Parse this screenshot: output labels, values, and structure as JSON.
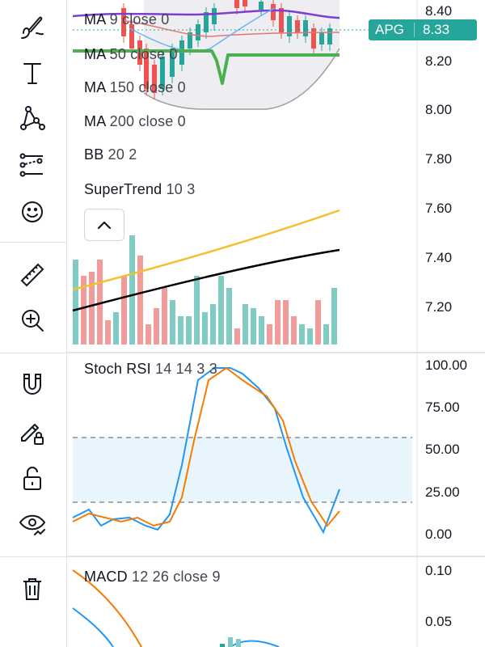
{
  "price_panel": {
    "legend": [
      {
        "name": "MA",
        "params": "9 close 0"
      },
      {
        "name": "MA",
        "params": "50 close 0"
      },
      {
        "name": "MA",
        "params": "150 close 0"
      },
      {
        "name": "MA",
        "params": "200 close 0"
      },
      {
        "name": "BB",
        "params": "20 2"
      },
      {
        "name": "SuperTrend",
        "params": "10 3"
      }
    ],
    "price_axis": [
      "8.40",
      "8.20",
      "8.00",
      "7.80",
      "7.60",
      "7.40",
      "7.20"
    ],
    "last_price": {
      "symbol": "APG",
      "value": "8.33",
      "color": "#26a69a"
    }
  },
  "stoch_panel": {
    "name": "Stoch RSI",
    "params": "14 14 3 3",
    "axis": [
      "100.00",
      "75.00",
      "50.00",
      "25.00",
      "0.00"
    ]
  },
  "macd_panel": {
    "name": "MACD",
    "params": "12 26 close 9",
    "axis": [
      "0.10",
      "0.05"
    ]
  },
  "toolbar": {
    "tools": [
      "brush-icon",
      "text-icon",
      "pattern-icon",
      "prediction-icon",
      "emoji-icon",
      "ruler-icon",
      "zoom-in-icon",
      "magnet-icon",
      "lock-drawings-icon",
      "unlock-icon",
      "eye-icon",
      "trash-icon"
    ]
  },
  "colors": {
    "up": "#26a69a",
    "down": "#ef5350",
    "stoch_k": "#2196f3",
    "stoch_d": "#f57c00",
    "ma_purple": "#7b3fd1",
    "ma_yellow": "#f2c12e",
    "ma_black": "#000000",
    "supertrend": "#4caf50"
  }
}
